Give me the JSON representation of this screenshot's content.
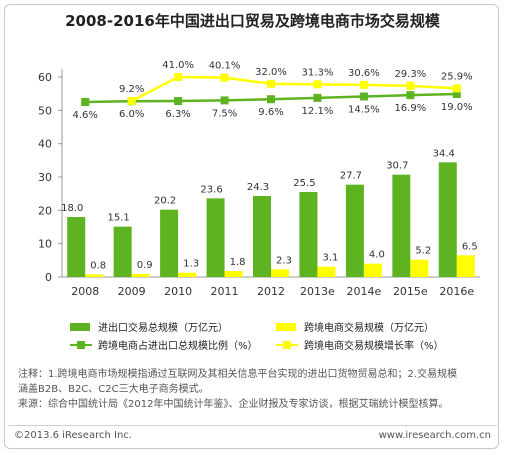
{
  "title": "2008-2016年中国进出口贸易及跨境电商市场交易规模",
  "chart_data": {
    "type": "bar",
    "categories": [
      "2008",
      "2009",
      "2010",
      "2011",
      "2012",
      "2013e",
      "2014e",
      "2015e",
      "2016e"
    ],
    "ylim": [
      0,
      60
    ],
    "y_ticks": [
      "0",
      "10",
      "20",
      "30",
      "40",
      "50",
      "60"
    ],
    "grid": false,
    "series": [
      {
        "name": "进出口交易总规模（万亿元）",
        "type": "bar",
        "color": "#5db320",
        "values": [
          18.0,
          15.1,
          20.2,
          23.6,
          24.3,
          25.5,
          27.7,
          30.7,
          34.4
        ],
        "labels": [
          "18.0",
          "15.1",
          "20.2",
          "23.6",
          "24.3",
          "25.5",
          "27.7",
          "30.7",
          "34.4"
        ]
      },
      {
        "name": "跨境电商交易规模（万亿元）",
        "type": "bar",
        "color": "#ffff00",
        "values": [
          0.8,
          0.9,
          1.3,
          1.8,
          2.3,
          3.1,
          4.0,
          5.2,
          6.5
        ],
        "labels": [
          "0.8",
          "0.9",
          "1.3",
          "1.8",
          "2.3",
          "3.1",
          "4.0",
          "5.2",
          "6.5"
        ]
      },
      {
        "name": "跨境电商占进出口总规模比例（%）",
        "type": "line",
        "color": "#5db320",
        "values": [
          4.6,
          6.0,
          6.3,
          7.5,
          9.6,
          12.1,
          14.5,
          16.9,
          19.0
        ],
        "labels": [
          "4.6%",
          "6.0%",
          "6.3%",
          "7.5%",
          "9.6%",
          "12.1%",
          "14.5%",
          "16.9%",
          "19.0%"
        ]
      },
      {
        "name": "跨境电商交易规模增长率（%）",
        "type": "line",
        "color": "#ffff00",
        "values": [
          null,
          9.2,
          41.0,
          40.1,
          32.0,
          31.3,
          30.6,
          29.3,
          25.9
        ],
        "labels": [
          "",
          "9.2%",
          "41.0%",
          "40.1%",
          "32.0%",
          "31.3%",
          "30.6%",
          "29.3%",
          "25.9%"
        ]
      }
    ]
  },
  "notes": {
    "line1": "注释：1.跨境电商市场规模指通过互联网及其相关信息平台实现的进出口货物贸易总和；2.交易规模",
    "line2": "涵盖B2B、B2C、C2C三大电子商务模式。",
    "line3": "来源：综合中国统计局《2012年中国统计年鉴》、企业财报及专家访谈，根据艾瑞统计模型核算。"
  },
  "footer": {
    "copyright": "©2013.6 iResearch Inc.",
    "website": "www.iresearch.com.cn"
  }
}
